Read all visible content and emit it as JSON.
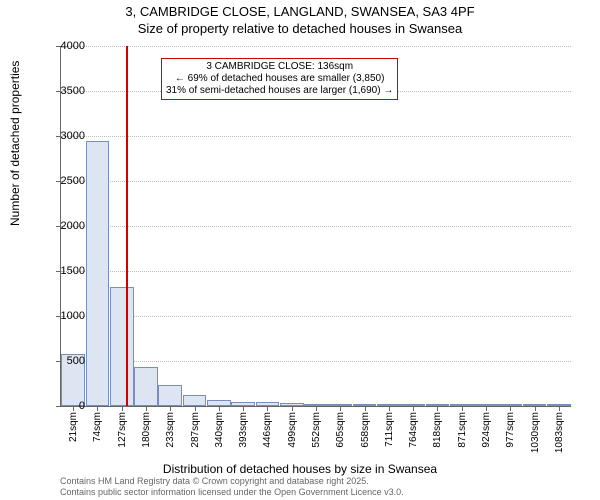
{
  "title_line1": "3, CAMBRIDGE CLOSE, LANGLAND, SWANSEA, SA3 4PF",
  "title_line2": "Size of property relative to detached houses in Swansea",
  "ylabel": "Number of detached properties",
  "xlabel": "Distribution of detached houses by size in Swansea",
  "chart": {
    "type": "histogram",
    "ylim": [
      0,
      4000
    ],
    "ytick_step": 500,
    "yticks": [
      0,
      500,
      1000,
      1500,
      2000,
      2500,
      3000,
      3500,
      4000
    ],
    "xticks": [
      "21sqm",
      "74sqm",
      "127sqm",
      "180sqm",
      "233sqm",
      "287sqm",
      "340sqm",
      "393sqm",
      "446sqm",
      "499sqm",
      "552sqm",
      "605sqm",
      "658sqm",
      "711sqm",
      "764sqm",
      "818sqm",
      "871sqm",
      "924sqm",
      "977sqm",
      "1030sqm",
      "1083sqm"
    ],
    "bar_values": [
      580,
      2950,
      1320,
      430,
      230,
      120,
      70,
      50,
      40,
      30,
      25,
      20,
      15,
      12,
      10,
      8,
      6,
      5,
      4,
      3,
      2
    ],
    "bar_fill": "#dde5f2",
    "bar_border": "#7a8fb8",
    "grid_color": "#bbbbbb",
    "axis_color": "#666666",
    "background": "#ffffff",
    "font_family": "Arial",
    "title_fontsize": 13,
    "label_fontsize": 12,
    "tick_fontsize": 11,
    "xtick_fontsize": 10
  },
  "marker": {
    "value_sqm": 136,
    "color": "#d00000",
    "annotation_line1": "3 CAMBRIDGE CLOSE: 136sqm",
    "annotation_line2": "← 69% of detached houses are smaller (3,850)",
    "annotation_line3": "31% of semi-detached houses are larger (1,690) →",
    "box_border": "#d00000",
    "box_background": "#ffffff",
    "annotation_fontsize": 10
  },
  "footer_line1": "Contains HM Land Registry data © Crown copyright and database right 2025.",
  "footer_line2": "Contains public sector information licensed under the Open Government Licence v3.0."
}
